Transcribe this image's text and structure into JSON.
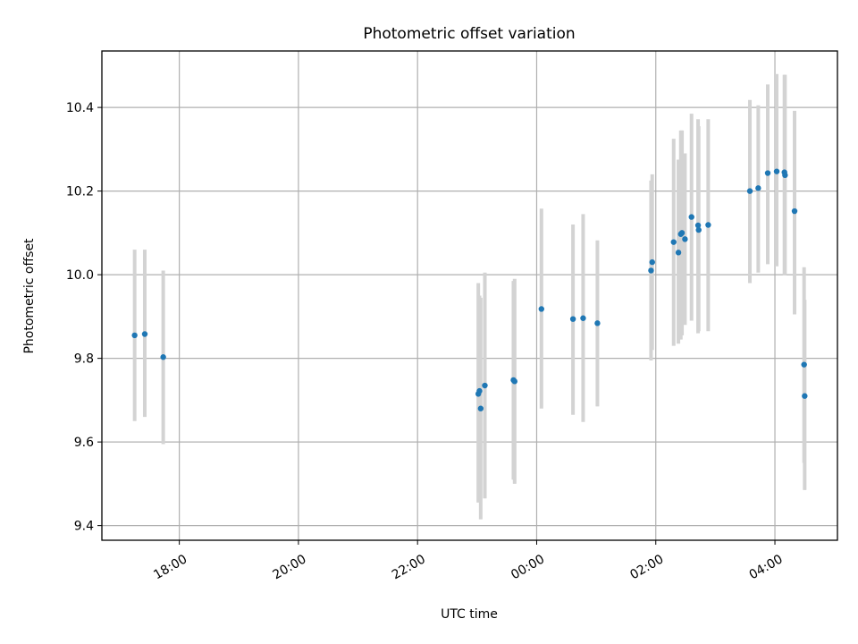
{
  "chart_data": {
    "type": "scatter",
    "title": "Photometric offset variation",
    "xlabel": "UTC time",
    "ylabel": "Photometric offset",
    "x_unit": "hours after 00:00 of the second day (negative = previous evening)",
    "xlim": [
      -7.3,
      5.05
    ],
    "ylim": [
      9.365,
      10.535
    ],
    "x_ticks": [
      {
        "value": -6,
        "label": "18:00"
      },
      {
        "value": -4,
        "label": "20:00"
      },
      {
        "value": -2,
        "label": "22:00"
      },
      {
        "value": 0,
        "label": "00:00"
      },
      {
        "value": 2,
        "label": "02:00"
      },
      {
        "value": 4,
        "label": "04:00"
      }
    ],
    "y_ticks": [
      {
        "value": 9.4,
        "label": "9.4"
      },
      {
        "value": 9.6,
        "label": "9.6"
      },
      {
        "value": 9.8,
        "label": "9.8"
      },
      {
        "value": 10.0,
        "label": "10.0"
      },
      {
        "value": 10.2,
        "label": "10.2"
      },
      {
        "value": 10.4,
        "label": "10.4"
      }
    ],
    "grid": true,
    "colors": {
      "point": "#1f77b4",
      "errorbar": "#d3d3d3"
    },
    "points": [
      {
        "x": -6.75,
        "y": 9.855,
        "ylow": 9.65,
        "yhigh": 10.06
      },
      {
        "x": -6.58,
        "y": 9.858,
        "ylow": 9.66,
        "yhigh": 10.06
      },
      {
        "x": -6.27,
        "y": 9.803,
        "ylow": 9.595,
        "yhigh": 10.01
      },
      {
        "x": -0.98,
        "y": 9.715,
        "ylow": 9.455,
        "yhigh": 9.98
      },
      {
        "x": -0.96,
        "y": 9.722,
        "ylow": 9.5,
        "yhigh": 9.95
      },
      {
        "x": -0.94,
        "y": 9.68,
        "ylow": 9.415,
        "yhigh": 9.945
      },
      {
        "x": -0.87,
        "y": 9.735,
        "ylow": 9.465,
        "yhigh": 10.005
      },
      {
        "x": -0.39,
        "y": 9.748,
        "ylow": 9.51,
        "yhigh": 9.985
      },
      {
        "x": -0.37,
        "y": 9.745,
        "ylow": 9.5,
        "yhigh": 9.99
      },
      {
        "x": 0.08,
        "y": 9.918,
        "ylow": 9.68,
        "yhigh": 10.158
      },
      {
        "x": 0.61,
        "y": 9.894,
        "ylow": 9.665,
        "yhigh": 10.12
      },
      {
        "x": 0.78,
        "y": 9.896,
        "ylow": 9.648,
        "yhigh": 10.145
      },
      {
        "x": 1.02,
        "y": 9.884,
        "ylow": 9.685,
        "yhigh": 10.082
      },
      {
        "x": 1.92,
        "y": 10.01,
        "ylow": 9.795,
        "yhigh": 10.225
      },
      {
        "x": 1.94,
        "y": 10.03,
        "ylow": 9.82,
        "yhigh": 10.24
      },
      {
        "x": 2.3,
        "y": 10.078,
        "ylow": 9.83,
        "yhigh": 10.325
      },
      {
        "x": 2.38,
        "y": 10.053,
        "ylow": 9.835,
        "yhigh": 10.275
      },
      {
        "x": 2.42,
        "y": 10.097,
        "ylow": 9.845,
        "yhigh": 10.345
      },
      {
        "x": 2.44,
        "y": 10.1,
        "ylow": 9.855,
        "yhigh": 10.345
      },
      {
        "x": 2.49,
        "y": 10.085,
        "ylow": 9.88,
        "yhigh": 10.29
      },
      {
        "x": 2.6,
        "y": 10.138,
        "ylow": 9.89,
        "yhigh": 10.385
      },
      {
        "x": 2.71,
        "y": 10.118,
        "ylow": 9.86,
        "yhigh": 10.372
      },
      {
        "x": 2.72,
        "y": 10.107,
        "ylow": 9.865,
        "yhigh": 10.355
      },
      {
        "x": 2.88,
        "y": 10.119,
        "ylow": 9.865,
        "yhigh": 10.372
      },
      {
        "x": 3.58,
        "y": 10.2,
        "ylow": 9.98,
        "yhigh": 10.418
      },
      {
        "x": 3.72,
        "y": 10.207,
        "ylow": 10.005,
        "yhigh": 10.405
      },
      {
        "x": 3.88,
        "y": 10.243,
        "ylow": 10.025,
        "yhigh": 10.455
      },
      {
        "x": 4.03,
        "y": 10.247,
        "ylow": 10.02,
        "yhigh": 10.48
      },
      {
        "x": 4.16,
        "y": 10.245,
        "ylow": 9.998,
        "yhigh": 10.478
      },
      {
        "x": 4.17,
        "y": 10.238,
        "ylow": 10.0,
        "yhigh": 10.478
      },
      {
        "x": 4.33,
        "y": 10.152,
        "ylow": 9.905,
        "yhigh": 10.392
      },
      {
        "x": 4.49,
        "y": 9.785,
        "ylow": 9.55,
        "yhigh": 10.018
      },
      {
        "x": 4.5,
        "y": 9.71,
        "ylow": 9.485,
        "yhigh": 9.94
      }
    ]
  }
}
